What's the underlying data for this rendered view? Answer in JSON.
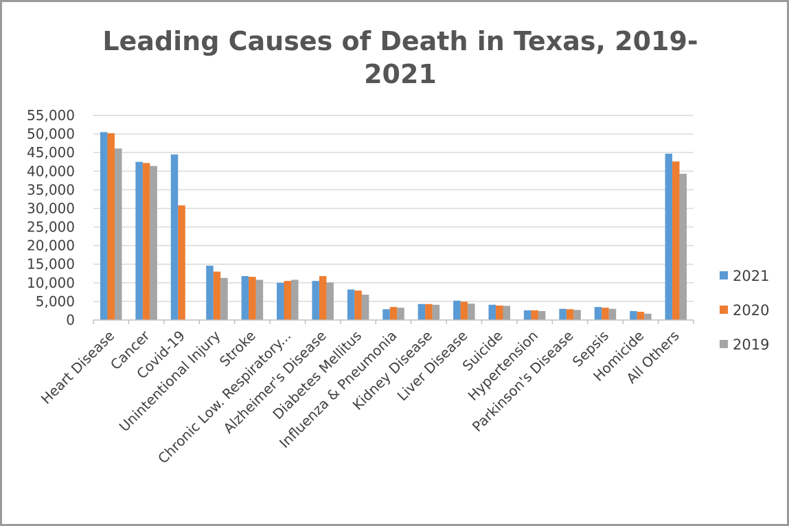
{
  "chart_data": {
    "type": "bar",
    "title": "Leading Causes of Death in Texas, 2019-2021",
    "title_lines": [
      "Leading Causes of Death in Texas, 2019-",
      "2021"
    ],
    "xlabel": "",
    "ylabel": "",
    "ylim": [
      0,
      55000
    ],
    "yticks": [
      0,
      5000,
      10000,
      15000,
      20000,
      25000,
      30000,
      35000,
      40000,
      45000,
      50000,
      55000
    ],
    "ytick_labels": [
      "0",
      "5,000",
      "10,000",
      "15,000",
      "20,000",
      "25,000",
      "30,000",
      "35,000",
      "40,000",
      "45,000",
      "50,000",
      "55,000"
    ],
    "grid": true,
    "legend_position": "right",
    "categories": [
      "Heart Disease",
      "Cancer",
      "Covid-19",
      "Unintentional Injury",
      "Stroke",
      "Chronic Low. Respiratory...",
      "Alzheimer's Disease",
      "Diabetes Mellitus",
      "Influenza & Pneumonia",
      "Kidney Disease",
      "Liver Disease",
      "Suicide",
      "Hypertension",
      "Parkinson's Disease",
      "Sepsis",
      "Homicide",
      "All Others"
    ],
    "series": [
      {
        "name": "2021",
        "color": "#5b9bd5",
        "values": [
          50500,
          42500,
          44500,
          14600,
          11800,
          10000,
          10500,
          8200,
          2900,
          4300,
          5200,
          4100,
          2600,
          3000,
          3500,
          2400,
          44700
        ]
      },
      {
        "name": "2020",
        "color": "#ed7d31",
        "values": [
          50200,
          42200,
          30800,
          13000,
          11600,
          10500,
          11800,
          7900,
          3500,
          4300,
          4900,
          3900,
          2600,
          2900,
          3300,
          2200,
          42600
        ]
      },
      {
        "name": "2019",
        "color": "#a5a5a5",
        "values": [
          46100,
          41400,
          0,
          11300,
          10800,
          10800,
          10100,
          6800,
          3300,
          4100,
          4400,
          3800,
          2400,
          2700,
          3000,
          1700,
          39300
        ]
      }
    ]
  }
}
